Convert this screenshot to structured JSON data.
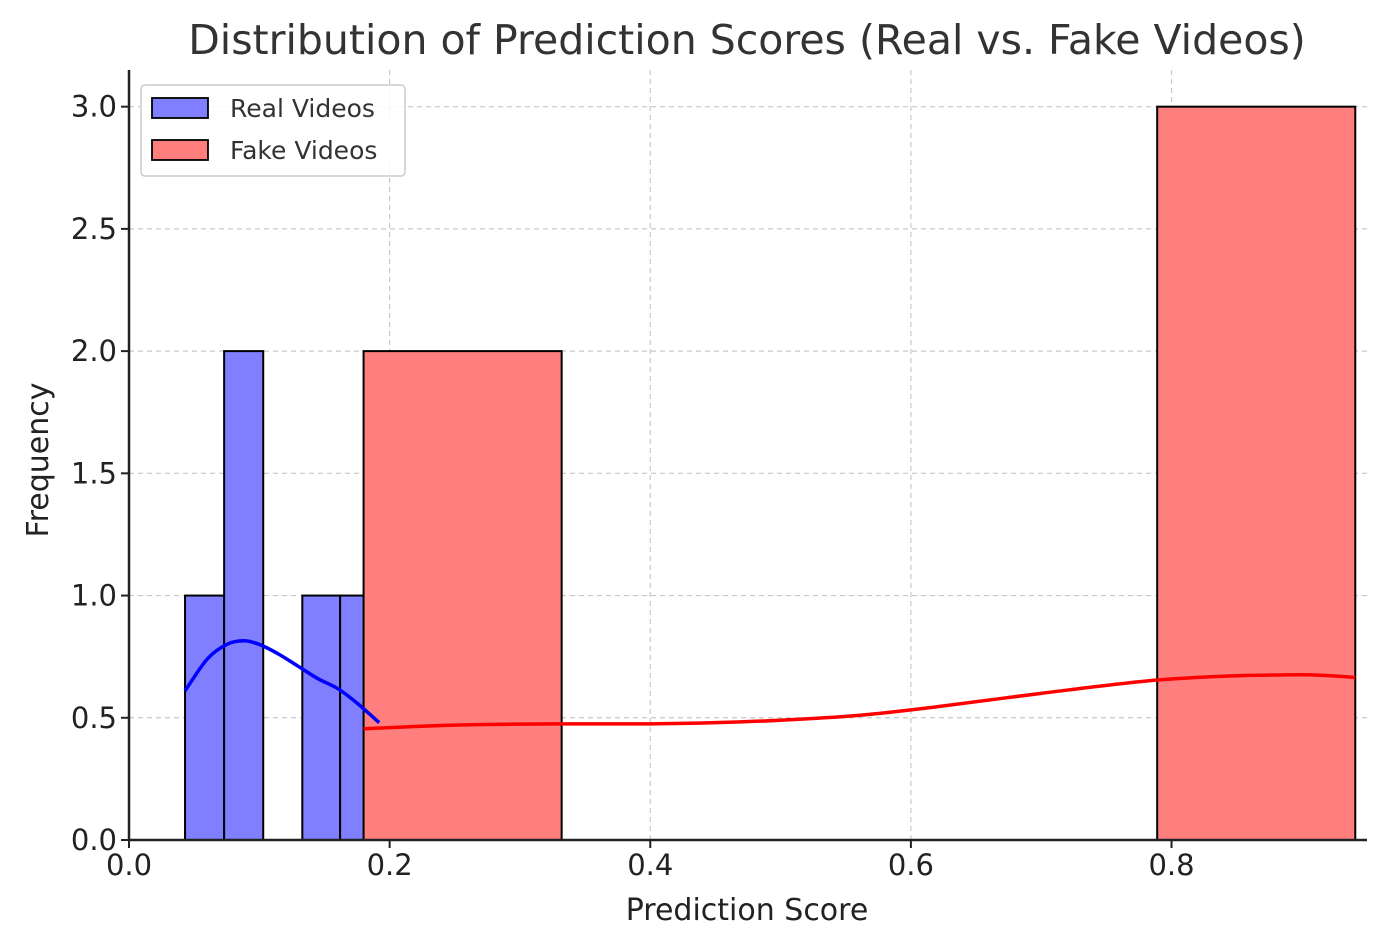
{
  "chart_data": {
    "type": "bar",
    "title": "Distribution of Prediction Scores (Real vs. Fake Videos)",
    "xlabel": "Prediction Score",
    "ylabel": "Frequency",
    "xlim": [
      0.0,
      0.95
    ],
    "ylim": [
      0.0,
      3.15
    ],
    "xticks": [
      0.0,
      0.2,
      0.4,
      0.6,
      0.8
    ],
    "xtick_labels": [
      "0.0",
      "0.2",
      "0.4",
      "0.6",
      "0.8"
    ],
    "yticks": [
      0.0,
      0.5,
      1.0,
      1.5,
      2.0,
      2.5,
      3.0
    ],
    "ytick_labels": [
      "0.0",
      "0.5",
      "1.0",
      "1.5",
      "2.0",
      "2.5",
      "3.0"
    ],
    "grid": true,
    "legend_position": "top-left",
    "series": [
      {
        "name": "Real Videos",
        "color": "#7f7fff",
        "line_color": "#0000ff",
        "bins": [
          {
            "x0": 0.043,
            "x1": 0.073,
            "count": 1
          },
          {
            "x0": 0.073,
            "x1": 0.103,
            "count": 2
          },
          {
            "x0": 0.103,
            "x1": 0.133,
            "count": 0
          },
          {
            "x0": 0.133,
            "x1": 0.162,
            "count": 1
          },
          {
            "x0": 0.162,
            "x1": 0.192,
            "count": 1
          }
        ],
        "kde": [
          [
            0.043,
            0.61
          ],
          [
            0.06,
            0.74
          ],
          [
            0.075,
            0.8
          ],
          [
            0.088,
            0.815
          ],
          [
            0.1,
            0.8
          ],
          [
            0.115,
            0.76
          ],
          [
            0.13,
            0.71
          ],
          [
            0.145,
            0.66
          ],
          [
            0.16,
            0.62
          ],
          [
            0.175,
            0.56
          ],
          [
            0.192,
            0.48
          ]
        ]
      },
      {
        "name": "Fake Videos",
        "color": "#ff7f7f",
        "line_color": "#ff0000",
        "bins": [
          {
            "x0": 0.18,
            "x1": 0.332,
            "count": 2
          },
          {
            "x0": 0.332,
            "x1": 0.484,
            "count": 0
          },
          {
            "x0": 0.484,
            "x1": 0.636,
            "count": 0
          },
          {
            "x0": 0.636,
            "x1": 0.789,
            "count": 0
          },
          {
            "x0": 0.789,
            "x1": 0.941,
            "count": 3
          }
        ],
        "kde": [
          [
            0.18,
            0.455
          ],
          [
            0.25,
            0.47
          ],
          [
            0.33,
            0.475
          ],
          [
            0.4,
            0.475
          ],
          [
            0.45,
            0.48
          ],
          [
            0.5,
            0.49
          ],
          [
            0.56,
            0.51
          ],
          [
            0.62,
            0.545
          ],
          [
            0.7,
            0.6
          ],
          [
            0.78,
            0.65
          ],
          [
            0.84,
            0.67
          ],
          [
            0.88,
            0.675
          ],
          [
            0.91,
            0.675
          ],
          [
            0.941,
            0.665
          ]
        ]
      }
    ]
  }
}
